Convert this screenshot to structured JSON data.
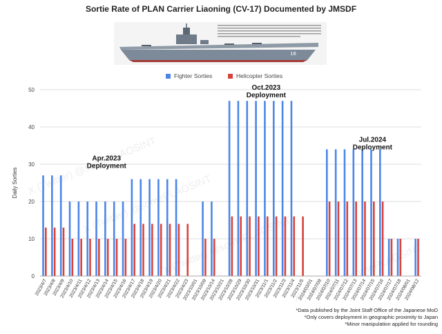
{
  "chart_data": {
    "type": "bar",
    "title": "Sortie Rate of PLAN Carrier Liaoning (CV-17) Documented by JMSDF",
    "ylabel": "Daily Sorties",
    "xlabel": "",
    "ylim": [
      0,
      50
    ],
    "yticks": [
      0,
      10,
      20,
      30,
      40,
      50
    ],
    "grid": true,
    "legend_position": "top-center",
    "categories": [
      "2023/4/7",
      "2023/4/8",
      "2023/4/9",
      "2023/4/10",
      "2023/4/11",
      "2023/4/12",
      "2023/4/13",
      "2023/4/14",
      "2023/4/15",
      "2023/4/16",
      "2023/4/17",
      "2023/4/18",
      "2023/4/19",
      "2023/4/20",
      "2023/4/21",
      "2023/4/22",
      "2023/4/23",
      "2023/10/01",
      "2023/10/09",
      "2023/10/14",
      "2023/10/21",
      "2023/10/28",
      "2023/10/29",
      "2023/10/30",
      "2023/10/31",
      "2023/11/1",
      "2023/11/2",
      "2023/11/3",
      "2023/11/4",
      "2023/11/5",
      "2024/03/01",
      "2024/07/09",
      "2024/07/10",
      "2024/07/11",
      "2024/07/12",
      "2024/07/13",
      "2024/07/14",
      "2024/07/15",
      "2024/07/16",
      "2024/07/17",
      "2024/07/18",
      "2024/08/01",
      "2024/08/12"
    ],
    "series": [
      {
        "name": "Fighter Sorties",
        "color": "#4a86e8",
        "values": [
          27,
          27,
          27,
          20,
          20,
          20,
          20,
          20,
          20,
          20,
          26,
          26,
          26,
          26,
          26,
          26,
          0,
          0,
          20,
          20,
          0,
          47,
          47,
          47,
          47,
          47,
          47,
          47,
          47,
          0,
          0,
          0,
          34,
          34,
          34,
          34,
          34,
          34,
          34,
          10,
          10,
          0,
          10
        ]
      },
      {
        "name": "Helicopter Sorties",
        "color": "#d9423a",
        "values": [
          13,
          13,
          13,
          10,
          10,
          10,
          10,
          10,
          10,
          10,
          14,
          14,
          14,
          14,
          14,
          14,
          14,
          0,
          10,
          10,
          0,
          16,
          16,
          16,
          16,
          16,
          16,
          16,
          16,
          16,
          0,
          0,
          20,
          20,
          20,
          20,
          20,
          20,
          20,
          10,
          10,
          0,
          10
        ]
      }
    ],
    "annotations": [
      {
        "text": "Apr.2023 Deployment",
        "x_index": 7,
        "y": 31
      },
      {
        "text": "Oct.2023 Deployment",
        "x_index": 25,
        "y": 50
      },
      {
        "text": "Jul.2024 Deployment",
        "x_index": 37,
        "y": 36
      }
    ]
  },
  "legend": {
    "fighter_label": "Fighter Sorties",
    "heli_label": "Helicopter Sorties"
  },
  "footnotes": {
    "line1": "*Data published by the Joint Staff Office of the Japanese MoD",
    "line2": "*Only covers deployment in geographic proximity to Japan",
    "line3": "*Minor manipulation applied for rounding"
  },
  "watermark": "X (Twitter) @somePLAOSINT",
  "ship": {
    "hull_number": "16"
  }
}
